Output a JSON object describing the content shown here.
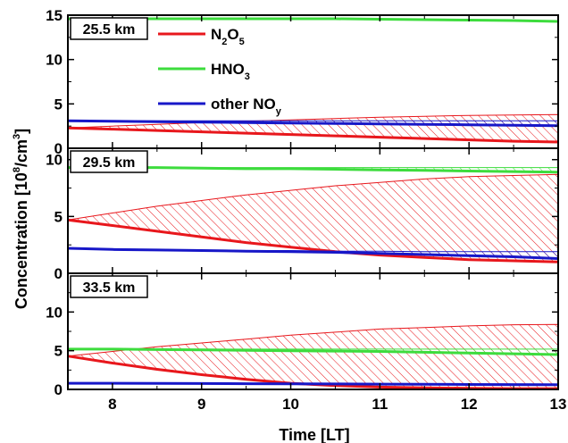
{
  "chart_data": {
    "type": "line",
    "xlabel": "Time [LT]",
    "ylabel_main": "Concentration [10",
    "ylabel_sup1": "8",
    "ylabel_mid": "/cm",
    "ylabel_sup2": "3",
    "ylabel_end": "]",
    "xlim": [
      7.5,
      13
    ],
    "xticks": [
      8,
      9,
      10,
      11,
      12,
      13
    ],
    "colors": {
      "N2O5": "#e8171c",
      "HNO3": "#3ddc3d",
      "other": "#1717c8"
    },
    "legend": [
      {
        "key": "N2O5",
        "pre": "N",
        "sub1": "2",
        "mid": "O",
        "sub2": "5"
      },
      {
        "key": "HNO3",
        "pre": "HNO",
        "sub1": "3",
        "mid": "",
        "sub2": ""
      },
      {
        "key": "other",
        "pre": "other NO",
        "sub1": "y",
        "mid": "",
        "sub2": ""
      }
    ],
    "panels": [
      {
        "label": "25.5 km",
        "ylim": [
          0,
          15
        ],
        "yticks": [
          0,
          5,
          10,
          15
        ],
        "x": [
          7.5,
          8,
          8.5,
          9,
          9.5,
          10,
          10.5,
          11,
          11.5,
          12,
          12.5,
          13
        ],
        "series": [
          {
            "key": "N2O5",
            "values": [
              2.3,
              2.15,
              2.0,
              1.85,
              1.7,
              1.55,
              1.4,
              1.25,
              1.1,
              0.95,
              0.8,
              0.7
            ],
            "upper": [
              2.3,
              2.5,
              2.7,
              2.9,
              3.05,
              3.2,
              3.35,
              3.5,
              3.6,
              3.7,
              3.75,
              3.8
            ]
          },
          {
            "key": "HNO3",
            "values": [
              14.6,
              14.6,
              14.6,
              14.6,
              14.6,
              14.6,
              14.6,
              14.55,
              14.5,
              14.45,
              14.4,
              14.3
            ],
            "upper": null
          },
          {
            "key": "other",
            "values": [
              3.1,
              3.05,
              3.0,
              2.95,
              2.9,
              2.85,
              2.8,
              2.75,
              2.7,
              2.65,
              2.6,
              2.55
            ],
            "upper": [
              3.1,
              3.1,
              3.1,
              3.1,
              3.1,
              3.1,
              3.1,
              3.1,
              3.1,
              3.1,
              3.1,
              3.1
            ]
          }
        ]
      },
      {
        "label": "29.5 km",
        "ylim": [
          0,
          11
        ],
        "yticks": [
          0,
          5,
          10
        ],
        "x": [
          7.5,
          8,
          8.5,
          9,
          9.5,
          10,
          10.5,
          11,
          11.5,
          12,
          12.5,
          13
        ],
        "series": [
          {
            "key": "N2O5",
            "values": [
              4.7,
              4.2,
              3.7,
              3.2,
              2.7,
              2.3,
              1.9,
              1.6,
              1.4,
              1.2,
              1.1,
              1.0
            ],
            "upper": [
              4.7,
              5.3,
              5.9,
              6.4,
              6.9,
              7.3,
              7.7,
              8.0,
              8.3,
              8.5,
              8.6,
              8.7
            ]
          },
          {
            "key": "HNO3",
            "values": [
              9.3,
              9.3,
              9.3,
              9.25,
              9.2,
              9.2,
              9.15,
              9.1,
              9.05,
              9.0,
              8.95,
              8.9
            ],
            "upper": [
              9.3,
              9.3,
              9.3,
              9.3,
              9.3,
              9.3,
              9.3,
              9.3,
              9.3,
              9.3,
              9.3,
              9.3
            ]
          },
          {
            "key": "other",
            "values": [
              2.2,
              2.1,
              2.05,
              2.0,
              1.95,
              1.9,
              1.85,
              1.75,
              1.65,
              1.55,
              1.45,
              1.3
            ],
            "upper": [
              2.2,
              2.15,
              2.1,
              2.05,
              2.0,
              2.0,
              1.95,
              1.95,
              1.9,
              1.9,
              1.9,
              1.9
            ]
          }
        ]
      },
      {
        "label": "33.5 km",
        "ylim": [
          0,
          15
        ],
        "yticks": [
          0,
          5,
          10
        ],
        "x": [
          7.5,
          8,
          8.5,
          9,
          9.5,
          10,
          10.5,
          11,
          11.5,
          12,
          12.5,
          13
        ],
        "series": [
          {
            "key": "N2O5",
            "values": [
              4.3,
              3.4,
              2.6,
              1.9,
              1.3,
              0.8,
              0.5,
              0.3,
              0.2,
              0.15,
              0.1,
              0.1
            ],
            "upper": [
              4.3,
              4.9,
              5.5,
              6.0,
              6.5,
              7.0,
              7.4,
              7.8,
              8.0,
              8.2,
              8.35,
              8.4
            ]
          },
          {
            "key": "HNO3",
            "values": [
              5.2,
              5.2,
              5.15,
              5.1,
              5.05,
              5.0,
              4.95,
              4.9,
              4.8,
              4.7,
              4.6,
              4.5
            ],
            "upper": [
              5.2,
              5.2,
              5.2,
              5.2,
              5.2,
              5.2,
              5.2,
              5.2,
              5.2,
              5.2,
              5.2,
              5.2
            ]
          },
          {
            "key": "other",
            "values": [
              0.8,
              0.8,
              0.78,
              0.76,
              0.74,
              0.72,
              0.7,
              0.68,
              0.66,
              0.64,
              0.62,
              0.6
            ],
            "upper": null
          }
        ]
      }
    ]
  }
}
